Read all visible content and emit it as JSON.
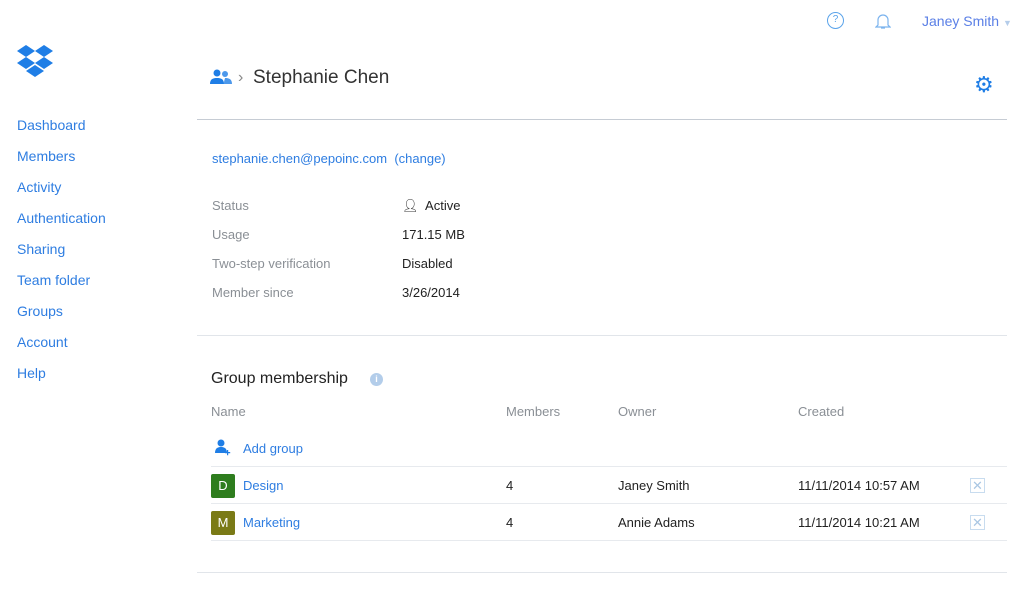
{
  "header": {
    "user_name": "Janey Smith"
  },
  "sidebar": {
    "items": [
      {
        "label": "Dashboard"
      },
      {
        "label": "Members"
      },
      {
        "label": "Activity"
      },
      {
        "label": "Authentication"
      },
      {
        "label": "Sharing"
      },
      {
        "label": "Team folder"
      },
      {
        "label": "Groups"
      },
      {
        "label": "Account"
      },
      {
        "label": "Help"
      }
    ]
  },
  "page": {
    "title": "Stephanie Chen",
    "email": "stephanie.chen@pepoinc.com",
    "change_label": "(change)"
  },
  "details": [
    {
      "label": "Status",
      "value": "Active"
    },
    {
      "label": "Usage",
      "value": "171.15 MB"
    },
    {
      "label": "Two-step verification",
      "value": "Disabled"
    },
    {
      "label": "Member since",
      "value": "3/26/2014"
    }
  ],
  "groups": {
    "title": "Group membership",
    "columns": [
      "Name",
      "Members",
      "Owner",
      "Created"
    ],
    "add_label": "Add group",
    "rows": [
      {
        "initial": "D",
        "name": "Design",
        "members": "4",
        "owner": "Janey Smith",
        "created": "11/11/2014 10:57 AM",
        "color": "#2e7d1e"
      },
      {
        "initial": "M",
        "name": "Marketing",
        "members": "4",
        "owner": "Annie Adams",
        "created": "11/11/2014 10:21 AM",
        "color": "#7a7a16"
      }
    ]
  },
  "colors": {
    "accent": "#2e7de1",
    "brand": "#1f7ee6"
  }
}
